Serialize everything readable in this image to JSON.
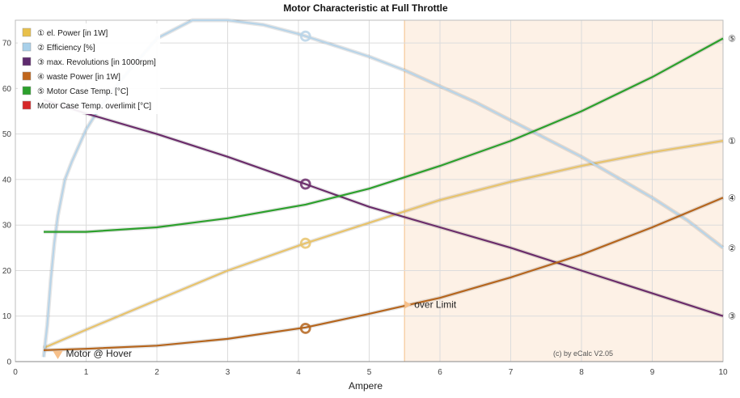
{
  "chart_data": {
    "type": "line",
    "title": "Motor Characteristic at Full Throttle",
    "xlabel": "Ampere",
    "ylabel": "",
    "xlim": [
      0,
      10
    ],
    "ylim": [
      0,
      75
    ],
    "x_ticks": [
      0,
      1,
      2,
      3,
      4,
      5,
      6,
      7,
      8,
      9,
      10
    ],
    "y_ticks": [
      0,
      10,
      20,
      30,
      40,
      50,
      60,
      70
    ],
    "grid": true,
    "legend_position": "top-left",
    "copyright": "(c) by eCalc  V2.05",
    "over_limit": {
      "from_x": 5.5,
      "label": "over Limit",
      "label_y": 12.5,
      "color": "#fdf1e6",
      "line_color": "#f7d2a9"
    },
    "hover": {
      "x": 0.6,
      "label": "Motor @ Hover",
      "marker_color": "#f7c08a"
    },
    "operating_point_x": 4.1,
    "series": [
      {
        "legend": "① el. Power [in 1W]",
        "end_label": "①",
        "color": "#e8c36b",
        "legend_color": "#e8c04a",
        "x": [
          0.4,
          1,
          2,
          3,
          4.1,
          5,
          6,
          7,
          8,
          9,
          10
        ],
        "y": [
          3,
          7,
          13.5,
          20,
          26,
          30.5,
          35.5,
          39.5,
          43,
          46,
          48.5
        ],
        "marker_y": 26
      },
      {
        "legend": "② Efficiency [%]",
        "end_label": "②",
        "color": "#b8d4e8",
        "legend_color": "#a8d0ea",
        "x": [
          0.4,
          0.45,
          0.5,
          0.55,
          0.6,
          0.7,
          0.8,
          1,
          1.2,
          1.5,
          2,
          2.5,
          3,
          3.5,
          4,
          4.5,
          5,
          5.5,
          6,
          6.5,
          7,
          7.5,
          8,
          8.5,
          9,
          9.5,
          10
        ],
        "y": [
          1,
          8,
          18,
          26,
          32,
          40,
          44,
          51,
          56,
          62,
          71,
          75,
          75,
          74,
          72,
          69.5,
          67,
          64,
          60.5,
          57,
          53,
          49,
          45,
          40.5,
          36,
          31,
          25
        ],
        "marker_y": 71.5
      },
      {
        "legend": "③ max. Revolutions [in 1000rpm]",
        "end_label": "③",
        "color": "#6b2d6b",
        "legend_color": "#5e2a6e",
        "x": [
          0.4,
          1,
          2,
          3,
          4.1,
          5,
          6,
          7,
          8,
          9,
          10
        ],
        "y": [
          57.5,
          54.5,
          50,
          45,
          39,
          34,
          29.5,
          25,
          20,
          15,
          10
        ],
        "marker_y": 39
      },
      {
        "legend": "④ waste Power [in 1W]",
        "end_label": "④",
        "color": "#b5651d",
        "legend_color": "#c0661c",
        "x": [
          0.4,
          1,
          2,
          3,
          4.1,
          5,
          6,
          7,
          8,
          9,
          10
        ],
        "y": [
          2.5,
          2.8,
          3.5,
          5,
          7.5,
          10.5,
          14,
          18.5,
          23.5,
          29.5,
          36
        ],
        "marker_y": 7.3
      },
      {
        "legend": "⑤ Motor Case Temp. [°C]",
        "end_label": "⑤",
        "color": "#2ca02c",
        "legend_color": "#2ca02c",
        "x": [
          0.4,
          1,
          2,
          3,
          4.1,
          5,
          6,
          7,
          8,
          9,
          10
        ],
        "y": [
          28.5,
          28.5,
          29.5,
          31.5,
          34.5,
          38,
          43,
          48.5,
          55,
          62.5,
          71
        ]
      },
      {
        "legend": "Motor Case Temp. overlimit [°C]",
        "end_label": "",
        "color": "#d62728",
        "legend_color": "#d62728",
        "x": [],
        "y": []
      }
    ]
  }
}
